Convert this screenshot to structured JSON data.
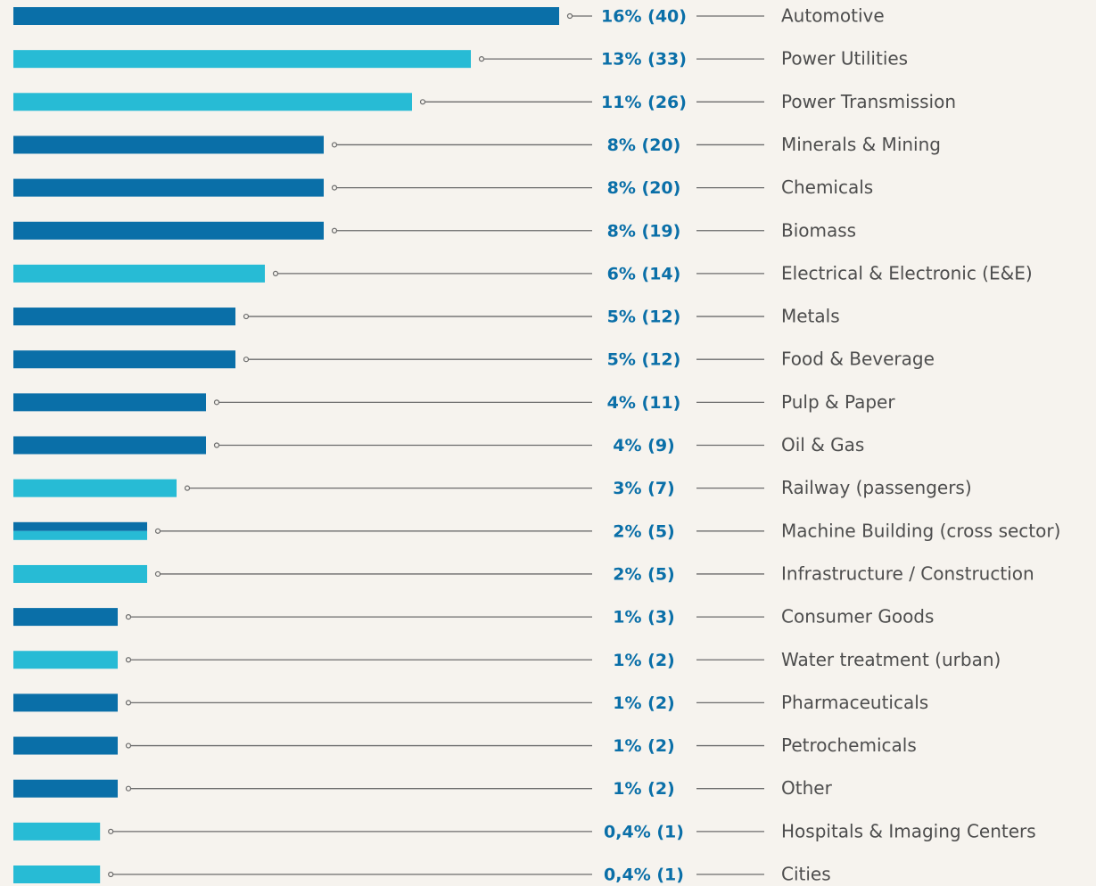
{
  "chart_data": {
    "type": "bar",
    "categories": [
      "Automotive",
      "Power Utilities",
      "Power Transmission",
      "Minerals & Mining",
      "Chemicals",
      "Biomass",
      "Electrical & Electronic (E&E)",
      "Metals",
      "Food & Beverage",
      "Pulp & Paper",
      "Oil & Gas",
      "Railway (passengers)",
      "Machine Building (cross sector)",
      "Infrastructure / Construction",
      "Consumer Goods",
      "Water treatment (urban)",
      "Pharmaceuticals",
      "Petrochemicals",
      "Other",
      "Hospitals & Imaging Centers",
      "Cities"
    ],
    "values": [
      16,
      13,
      11,
      8,
      8,
      8,
      6,
      5,
      5,
      4,
      4,
      3,
      2,
      2,
      1,
      1,
      1,
      1,
      1,
      0.4,
      0.4
    ],
    "value_labels": [
      "16% (40)",
      "13% (33)",
      "11% (26)",
      "8% (20)",
      "8% (20)",
      "8% (19)",
      "6% (14)",
      "5% (12)",
      "5% (12)",
      "4% (11)",
      "4% (9)",
      "3% (7)",
      "2% (5)",
      "2% (5)",
      "1% (3)",
      "1% (2)",
      "1% (2)",
      "1% (2)",
      "1% (2)",
      "0,4% (1)",
      "0,4% (1)"
    ],
    "colors": [
      "#0a6fa8",
      "#27bbd5",
      "#27bbd5",
      "#0a6fa8",
      "#0a6fa8",
      "#0a6fa8",
      "#27bbd5",
      "#0a6fa8",
      "#0a6fa8",
      "#0a6fa8",
      "#0a6fa8",
      "#27bbd5",
      [
        "#0a6fa8",
        "#27bbd5"
      ],
      "#27bbd5",
      "#0a6fa8",
      "#27bbd5",
      "#0a6fa8",
      "#0a6fa8",
      "#0a6fa8",
      "#27bbd5",
      "#27bbd5"
    ]
  }
}
